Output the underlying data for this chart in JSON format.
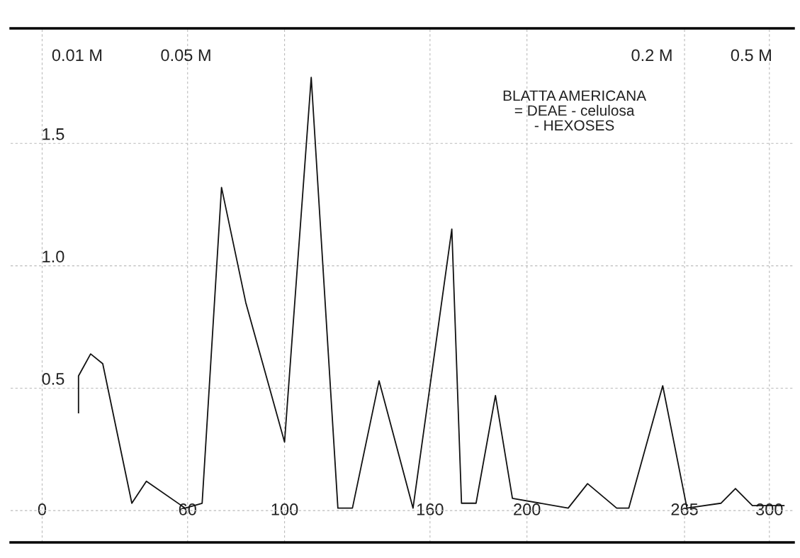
{
  "chart_data": {
    "type": "line",
    "annotations": [
      "BLATTA AMERICANA\n= DEAE - celulosa\n- HEXOSES",
      "0.01 M",
      "0.05 M",
      "0.2 M",
      "0.5 M"
    ],
    "x": [
      15,
      15,
      20,
      25,
      37,
      43,
      59,
      66,
      74,
      84,
      100,
      111,
      122,
      128,
      139,
      153,
      169,
      173,
      179,
      187,
      194,
      217,
      225,
      237,
      242,
      256,
      266,
      280,
      286,
      293,
      306
    ],
    "series": [
      {
        "color": "#111111",
        "values": [
          0.4,
          0.55,
          0.64,
          0.6,
          0.03,
          0.12,
          0.01,
          0.03,
          1.32,
          0.85,
          0.28,
          1.77,
          0.01,
          0.01,
          0.53,
          0.01,
          1.15,
          0.03,
          0.03,
          0.47,
          0.05,
          0.01,
          0.11,
          0.01,
          0.01,
          0.51,
          0.01,
          0.03,
          0.09,
          0.02,
          0.02
        ]
      }
    ],
    "xlim": [
      -13,
      310
    ],
    "xticks": [
      0,
      60,
      100,
      160,
      200,
      265,
      300
    ],
    "ylim": [
      -0.13,
      1.97
    ],
    "yticks": [
      {
        "value": 0,
        "label": null
      },
      0.5,
      {
        "value": 1.0,
        "label": "1.0"
      },
      1.5
    ],
    "grid": true,
    "legend": false,
    "marker": "none",
    "line_style": "solid"
  }
}
